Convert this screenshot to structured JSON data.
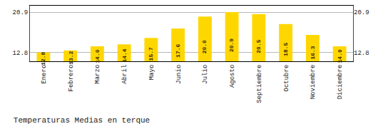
{
  "chart_data": {
    "type": "bar",
    "title": "Temperaturas Medias en terque",
    "categories": [
      "Enero",
      "Febrero",
      "Marzo",
      "Abril",
      "Mayo",
      "Junio",
      "Julio",
      "Agosto",
      "Septiembre",
      "Octubre",
      "Noviembre",
      "Diciembre"
    ],
    "values": [
      12.8,
      13.2,
      14.0,
      14.4,
      15.7,
      17.6,
      20.0,
      20.9,
      20.5,
      18.5,
      16.3,
      14.0
    ],
    "value_labels": [
      "12.8",
      "13.2",
      "14.0",
      "14.4",
      "15.7",
      "17.6",
      "20.0",
      "20.9",
      "20.5",
      "18.5",
      "16.3",
      "14.0"
    ],
    "color": "#FFD700",
    "ylim": [
      11.0,
      22.2
    ],
    "yticks": [
      12.8,
      20.9
    ],
    "y2lim": [
      11.0,
      22.2
    ],
    "y2ticks": [
      12.8,
      20.9
    ],
    "grid": true,
    "data_labels": true
  }
}
